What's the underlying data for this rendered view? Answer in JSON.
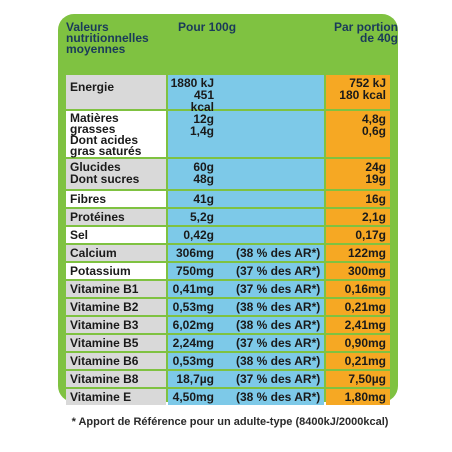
{
  "header": {
    "nutrients": "Valeurs nutritionnelles moyennes",
    "per100": "Pour 100g",
    "portion": "Par portion de 40g"
  },
  "rows": [
    {
      "name": "Energie",
      "per100": "1880 kJ\n451 kcal",
      "ar": "",
      "portion": "752 kJ\n180 kcal"
    },
    {
      "name": "Matières grasses\nDont acides gras saturés",
      "per100": "12g\n1,4g",
      "ar": "",
      "portion": "4,8g\n0,6g"
    },
    {
      "name": "Glucides\nDont sucres",
      "per100": "60g\n48g",
      "ar": "",
      "portion": "24g\n19g"
    },
    {
      "name": "Fibres",
      "per100": "41g",
      "ar": "",
      "portion": "16g"
    },
    {
      "name": "Protéines",
      "per100": "5,2g",
      "ar": "",
      "portion": "2,1g"
    },
    {
      "name": "Sel",
      "per100": "0,42g",
      "ar": "",
      "portion": "0,17g"
    },
    {
      "name": "Calcium",
      "per100": "306mg",
      "ar": "(38 % des AR*)",
      "portion": "122mg"
    },
    {
      "name": "Potassium",
      "per100": "750mg",
      "ar": "(37 % des AR*)",
      "portion": "300mg"
    },
    {
      "name": "Vitamine B1",
      "per100": "0,41mg",
      "ar": "(37 % des AR*)",
      "portion": "0,16mg"
    },
    {
      "name": "Vitamine B2",
      "per100": "0,53mg",
      "ar": "(38 % des AR*)",
      "portion": "0,21mg"
    },
    {
      "name": "Vitamine B3",
      "per100": "6,02mg",
      "ar": "(38 % des AR*)",
      "portion": "2,41mg"
    },
    {
      "name": "Vitamine B5",
      "per100": "2,24mg",
      "ar": "(37 % des AR*)",
      "portion": "0,90mg"
    },
    {
      "name": "Vitamine B6",
      "per100": "0,53mg",
      "ar": "(38 % des AR*)",
      "portion": "0,21mg"
    },
    {
      "name": "Vitamine B8",
      "per100": "18,7µg",
      "ar": "(37 % des AR*)",
      "portion": "7,50µg"
    },
    {
      "name": "Vitamine E",
      "per100": "4,50mg",
      "ar": "(38 % des AR*)",
      "portion": "1,80mg"
    }
  ],
  "footnote": "* Apport de Référence pour un adulte-type (8400kJ/2000kcal)"
}
